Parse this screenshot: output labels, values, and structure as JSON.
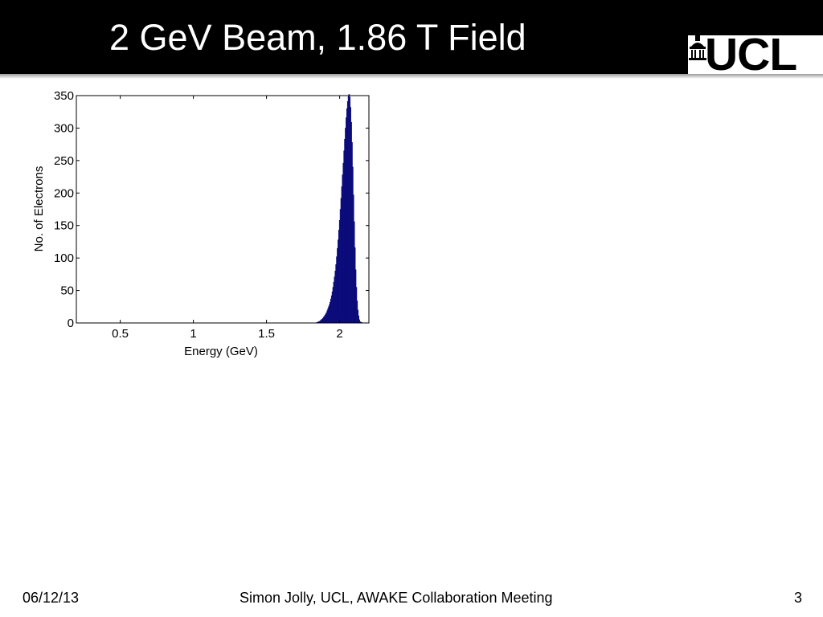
{
  "slide": {
    "title": "2 GeV Beam, 1.86 T Field",
    "logo_text": "UCL"
  },
  "footer": {
    "date": "06/12/13",
    "author": "Simon Jolly, UCL, AWAKE Collaboration Meeting",
    "page_number": "3"
  },
  "colors": {
    "header_bg": "#000000",
    "bar_fill": "#0b0b7a"
  },
  "chart_data": {
    "type": "bar",
    "xlabel": "Energy (GeV)",
    "ylabel": "No. of Electrons",
    "xlim": [
      0.2,
      2.2
    ],
    "ylim": [
      0,
      350
    ],
    "x_ticks": [
      "0.5",
      "1",
      "1.5",
      "2"
    ],
    "y_ticks": [
      "0",
      "50",
      "100",
      "150",
      "200",
      "250",
      "300",
      "350"
    ],
    "grid": false,
    "bin_width": 0.005,
    "x": [
      1.845,
      1.85,
      1.855,
      1.86,
      1.865,
      1.87,
      1.875,
      1.88,
      1.885,
      1.89,
      1.895,
      1.9,
      1.905,
      1.91,
      1.915,
      1.92,
      1.925,
      1.93,
      1.935,
      1.94,
      1.945,
      1.95,
      1.955,
      1.96,
      1.965,
      1.97,
      1.975,
      1.98,
      1.985,
      1.99,
      1.995,
      2.0,
      2.005,
      2.01,
      2.015,
      2.02,
      2.025,
      2.03,
      2.035,
      2.04,
      2.045,
      2.05,
      2.055,
      2.06,
      2.065,
      2.07,
      2.075,
      2.08,
      2.085,
      2.09,
      2.095,
      2.1,
      2.105,
      2.11,
      2.115,
      2.12,
      2.125,
      2.13,
      2.135,
      2.14,
      2.145,
      2.15,
      2.155,
      2.16,
      2.165,
      2.17
    ],
    "values": [
      1,
      1,
      2,
      2,
      3,
      4,
      5,
      6,
      7,
      9,
      10,
      12,
      14,
      16,
      19,
      22,
      25,
      28,
      32,
      37,
      42,
      48,
      55,
      63,
      71,
      80,
      90,
      102,
      115,
      128,
      143,
      158,
      175,
      192,
      210,
      228,
      246,
      265,
      283,
      300,
      316,
      330,
      341,
      349,
      352,
      348,
      332,
      309,
      278,
      240,
      197,
      156,
      116,
      82,
      55,
      34,
      20,
      11,
      5,
      2,
      1,
      1,
      0,
      0,
      0,
      0
    ]
  }
}
